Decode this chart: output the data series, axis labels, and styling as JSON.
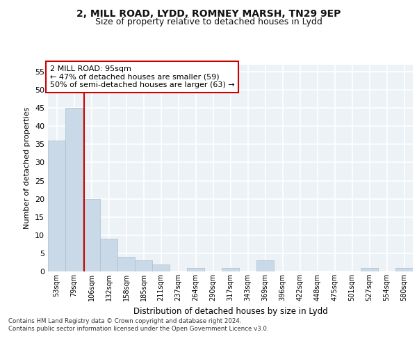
{
  "title": "2, MILL ROAD, LYDD, ROMNEY MARSH, TN29 9EP",
  "subtitle": "Size of property relative to detached houses in Lydd",
  "xlabel": "Distribution of detached houses by size in Lydd",
  "ylabel": "Number of detached properties",
  "categories": [
    "53sqm",
    "79sqm",
    "106sqm",
    "132sqm",
    "158sqm",
    "185sqm",
    "211sqm",
    "237sqm",
    "264sqm",
    "290sqm",
    "317sqm",
    "343sqm",
    "369sqm",
    "396sqm",
    "422sqm",
    "448sqm",
    "475sqm",
    "501sqm",
    "527sqm",
    "554sqm",
    "580sqm"
  ],
  "values": [
    36,
    45,
    20,
    9,
    4,
    3,
    2,
    0,
    1,
    0,
    1,
    0,
    3,
    0,
    0,
    0,
    0,
    0,
    1,
    0,
    1
  ],
  "bar_color": "#c9d9e8",
  "bar_edge_color": "#a8bfcf",
  "ylim": [
    0,
    57
  ],
  "yticks": [
    0,
    5,
    10,
    15,
    20,
    25,
    30,
    35,
    40,
    45,
    50,
    55
  ],
  "annotation_text": "2 MILL ROAD: 95sqm\n← 47% of detached houses are smaller (59)\n50% of semi-detached houses are larger (63) →",
  "annotation_box_color": "#ffffff",
  "annotation_box_edge": "#cc0000",
  "title_fontsize": 10,
  "subtitle_fontsize": 9,
  "footer_text": "Contains HM Land Registry data © Crown copyright and database right 2024.\nContains public sector information licensed under the Open Government Licence v3.0.",
  "background_color": "#edf2f7",
  "grid_color": "#ffffff"
}
